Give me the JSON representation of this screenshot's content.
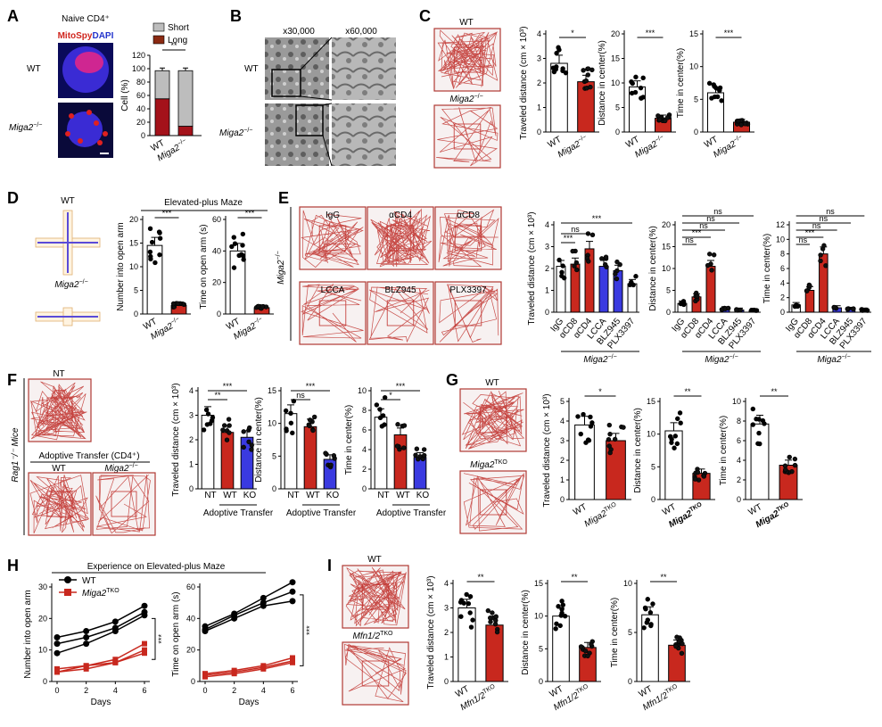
{
  "colors": {
    "red": "#c8281e",
    "darkred": "#a4121a",
    "brown": "#8b2a12",
    "blue": "#3a3ae0",
    "grey": "#bdbdbd",
    "trackred": "#c0302c"
  },
  "panels": [
    {
      "id": "A",
      "letter": "A",
      "header": "Naive CD4⁺",
      "micro_label": "MitoSpy",
      "micro_label2": "DAPI",
      "row_labels": [
        "WT",
        "Miga2"
      ],
      "ylabel": "Cell (%)",
      "ticks": [
        "0",
        "20",
        "40",
        "60",
        "80",
        "100",
        "120"
      ],
      "legend": [
        "Short",
        "Long"
      ],
      "sig": "**",
      "cats": [
        "WT",
        "Miga2"
      ]
    },
    {
      "id": "B",
      "letter": "B",
      "zoom": [
        "x30,000",
        "x60,000"
      ],
      "row_labels": [
        "WT",
        "Miga2"
      ]
    },
    {
      "id": "C",
      "letter": "C",
      "track_labels": [
        "WT",
        "Miga2"
      ],
      "plots": [
        {
          "ylabel": "Traveled distance (cm × 10³)",
          "ticks": [
            "0",
            "1",
            "2",
            "3",
            "4"
          ],
          "sig": "*",
          "cats": [
            "WT",
            "Miga2"
          ]
        },
        {
          "ylabel": "Distance in center(%)",
          "ticks": [
            "0",
            "5",
            "10",
            "15",
            "20"
          ],
          "sig": "***",
          "cats": [
            "WT",
            "Miga2"
          ]
        },
        {
          "ylabel": "Time in center(%)",
          "ticks": [
            "0",
            "5",
            "10",
            "15"
          ],
          "sig": "***",
          "cats": [
            "WT",
            "Miga2"
          ]
        }
      ]
    },
    {
      "id": "D",
      "letter": "D",
      "title": "Elevated-plus Maze",
      "maze_labels": [
        "WT",
        "Miga2"
      ],
      "plots": [
        {
          "ylabel": "Number into open arm",
          "ticks": [
            "0",
            "5",
            "10",
            "15",
            "20"
          ],
          "sig": "***",
          "cats": [
            "WT",
            "Miga2"
          ]
        },
        {
          "ylabel": "Time on open arm (s)",
          "ticks": [
            "0",
            "20",
            "40",
            "60"
          ],
          "sig": "***",
          "cats": [
            "WT",
            "Miga2"
          ]
        }
      ]
    },
    {
      "id": "E",
      "letter": "E",
      "side": "Miga2",
      "tracks": [
        "IgG",
        "αCD4",
        "αCD8",
        "LCCA",
        "BLZ945",
        "PLX3397"
      ],
      "cats": [
        "IgG",
        "αCD8",
        "αCD4",
        "LCCA",
        "BLZ945",
        "PLX3397"
      ],
      "under": "Miga2",
      "plots": [
        {
          "ylabel": "Traveled distance (cm × 10³)",
          "ticks": [
            "0",
            "1",
            "2",
            "3",
            "4"
          ],
          "sigs": [
            "ns",
            "***",
            "***"
          ]
        },
        {
          "ylabel": "Distance in center(%)",
          "ticks": [
            "0",
            "5",
            "10",
            "15",
            "20"
          ],
          "sigs": [
            "ns",
            "ns",
            "ns",
            "***",
            "ns"
          ]
        },
        {
          "ylabel": "Time in center(%)",
          "ticks": [
            "0",
            "2",
            "4",
            "6",
            "8",
            "10",
            "12"
          ],
          "sigs": [
            "ns",
            "ns",
            "ns",
            "***",
            "ns"
          ]
        }
      ]
    },
    {
      "id": "F",
      "letter": "F",
      "side": "Rag1⁻/⁻ Mice",
      "track_top": "NT",
      "transfer": "Adoptive Transfer (CD4⁺)",
      "track_labels": [
        "WT",
        "Miga2"
      ],
      "cats": [
        "NT",
        "WT",
        "KO"
      ],
      "group": "Adoptive Transfer",
      "plots": [
        {
          "ylabel": "Traveled distance (cm × 10³)",
          "ticks": [
            "0",
            "1",
            "2",
            "3",
            "4"
          ],
          "sigs": [
            "**",
            "***"
          ]
        },
        {
          "ylabel": "Distance in center(%)",
          "ticks": [
            "0",
            "5",
            "10",
            "15"
          ],
          "sigs": [
            "ns",
            "***"
          ]
        },
        {
          "ylabel": "Time in center(%)",
          "ticks": [
            "0",
            "2",
            "4",
            "6",
            "8",
            "10"
          ],
          "sigs": [
            "*",
            "***"
          ]
        }
      ]
    },
    {
      "id": "G",
      "letter": "G",
      "track_labels": [
        "WT",
        "Miga2TKO"
      ],
      "plots": [
        {
          "ylabel": "Traveled distance (cm × 10³)",
          "ticks": [
            "0",
            "1",
            "2",
            "3",
            "4",
            "5"
          ],
          "sig": "*",
          "cats": [
            "WT",
            "Miga2TKO"
          ]
        },
        {
          "ylabel": "Distance in center(%)",
          "ticks": [
            "0",
            "5",
            "10",
            "15"
          ],
          "sig": "**",
          "cats": [
            "WT",
            "Miga2TKO"
          ]
        },
        {
          "ylabel": "Time in center(%)",
          "ticks": [
            "0",
            "2",
            "4",
            "6",
            "8",
            "10"
          ],
          "sig": "**",
          "cats": [
            "WT",
            "Miga2TKO"
          ]
        }
      ]
    },
    {
      "id": "H",
      "letter": "H",
      "title": "Experience on Elevated-plus Maze",
      "legend": [
        "WT",
        "Miga2TKO"
      ],
      "plots": [
        {
          "ylabel": "Number into open arm",
          "xlabel": "Days",
          "xticks": [
            "0",
            "2",
            "4",
            "6"
          ],
          "ticks": [
            "0",
            "10",
            "20",
            "30"
          ],
          "sig": "***"
        },
        {
          "ylabel": "Time on open arm (s)",
          "xlabel": "Days",
          "xticks": [
            "0",
            "2",
            "4",
            "6"
          ],
          "ticks": [
            "0",
            "20",
            "40",
            "60"
          ],
          "sig": "***"
        }
      ]
    },
    {
      "id": "I",
      "letter": "I",
      "track_labels": [
        "WT",
        "Mfn1/2TKO"
      ],
      "plots": [
        {
          "ylabel": "Traveled distance (cm × 10³)",
          "ticks": [
            "0",
            "1",
            "2",
            "3",
            "4"
          ],
          "sig": "**",
          "cats": [
            "WT",
            "Mfn1/2TKO"
          ]
        },
        {
          "ylabel": "Distance in center(%)",
          "ticks": [
            "0",
            "5",
            "10",
            "15"
          ],
          "sig": "**",
          "cats": [
            "WT",
            "Mfn1/2TKO"
          ]
        },
        {
          "ylabel": "Time in center(%)",
          "ticks": [
            "0",
            "5",
            "10"
          ],
          "sig": "**",
          "cats": [
            "WT",
            "Mfn1/2TKO"
          ]
        }
      ]
    }
  ],
  "chart_data": [
    {
      "panel": "A",
      "type": "bar",
      "categories": [
        "WT",
        "Miga2"
      ],
      "ylim": [
        0,
        120
      ],
      "series": [
        {
          "name": "Long",
          "values": [
            55,
            14
          ]
        },
        {
          "name": "Short",
          "values": [
            42,
            83
          ]
        }
      ]
    },
    {
      "panel": "C",
      "type": "bar",
      "categories": [
        "WT",
        "Miga2"
      ],
      "ylim": [
        0,
        4
      ],
      "values": [
        2.8,
        2.05
      ]
    },
    {
      "panel": "C",
      "type": "bar",
      "categories": [
        "WT",
        "Miga2"
      ],
      "ylim": [
        0,
        20
      ],
      "values": [
        9.2,
        2.8
      ]
    },
    {
      "panel": "C",
      "type": "bar",
      "categories": [
        "WT",
        "Miga2"
      ],
      "ylim": [
        0,
        15
      ],
      "values": [
        6.0,
        1.5
      ]
    },
    {
      "panel": "D",
      "type": "bar",
      "categories": [
        "WT",
        "Miga2"
      ],
      "ylim": [
        0,
        20
      ],
      "values": [
        14.5,
        1.8
      ]
    },
    {
      "panel": "D",
      "type": "bar",
      "categories": [
        "WT",
        "Miga2"
      ],
      "ylim": [
        0,
        60
      ],
      "values": [
        40,
        4
      ]
    },
    {
      "panel": "E",
      "type": "bar",
      "categories": [
        "IgG",
        "αCD8",
        "αCD4",
        "LCCA",
        "BLZ945",
        "PLX3397"
      ],
      "ylim": [
        0,
        4
      ],
      "values": [
        2.1,
        2.2,
        2.9,
        2.1,
        1.9,
        1.3
      ]
    },
    {
      "panel": "E",
      "type": "bar",
      "categories": [
        "IgG",
        "αCD8",
        "αCD4",
        "LCCA",
        "BLZ945",
        "PLX3397"
      ],
      "ylim": [
        0,
        20
      ],
      "values": [
        2.0,
        3.5,
        10.5,
        0.8,
        0.5,
        0.4
      ]
    },
    {
      "panel": "E",
      "type": "bar",
      "categories": [
        "IgG",
        "αCD8",
        "αCD4",
        "LCCA",
        "BLZ945",
        "PLX3397"
      ],
      "ylim": [
        0,
        12
      ],
      "values": [
        1.0,
        3.0,
        8.0,
        0.6,
        0.4,
        0.3
      ]
    },
    {
      "panel": "F",
      "type": "bar",
      "categories": [
        "NT",
        "WT",
        "KO"
      ],
      "ylim": [
        0,
        4
      ],
      "values": [
        3.0,
        2.3,
        2.1
      ]
    },
    {
      "panel": "F",
      "type": "bar",
      "categories": [
        "NT",
        "WT",
        "KO"
      ],
      "ylim": [
        0,
        15
      ],
      "values": [
        11.5,
        9.5,
        4.5
      ]
    },
    {
      "panel": "F",
      "type": "bar",
      "categories": [
        "NT",
        "WT",
        "KO"
      ],
      "ylim": [
        0,
        10
      ],
      "values": [
        7.3,
        5.5,
        3.2
      ]
    },
    {
      "panel": "G",
      "type": "bar",
      "categories": [
        "WT",
        "Miga2TKO"
      ],
      "ylim": [
        0,
        5
      ],
      "values": [
        3.8,
        3.0
      ]
    },
    {
      "panel": "G",
      "type": "bar",
      "categories": [
        "WT",
        "Miga2TKO"
      ],
      "ylim": [
        0,
        15
      ],
      "values": [
        10.5,
        4.0
      ]
    },
    {
      "panel": "G",
      "type": "bar",
      "categories": [
        "WT",
        "Miga2TKO"
      ],
      "ylim": [
        0,
        10
      ],
      "values": [
        7.7,
        3.5
      ]
    },
    {
      "panel": "H",
      "type": "line",
      "x": [
        0,
        2,
        4,
        6
      ],
      "ylim": [
        0,
        30
      ],
      "series": [
        {
          "name": "WT",
          "values": [
            [
              14,
              16,
              19,
              24
            ],
            [
              12,
              14,
              17,
              22
            ],
            [
              9,
              12,
              16,
              21
            ]
          ]
        },
        {
          "name": "Miga2TKO",
          "values": [
            [
              4,
              5,
              7,
              12
            ],
            [
              3,
              5,
              6,
              10
            ],
            [
              3,
              4,
              6,
              9
            ]
          ]
        }
      ]
    },
    {
      "panel": "H",
      "type": "line",
      "x": [
        0,
        2,
        4,
        6
      ],
      "ylim": [
        0,
        60
      ],
      "series": [
        {
          "name": "WT",
          "values": [
            [
              35,
              43,
              53,
              63
            ],
            [
              33,
              42,
              50,
              57
            ],
            [
              32,
              40,
              48,
              51
            ]
          ]
        },
        {
          "name": "Miga2TKO",
          "values": [
            [
              5,
              7,
              10,
              15
            ],
            [
              4,
              6,
              9,
              13
            ],
            [
              3,
              5,
              8,
              12
            ]
          ]
        }
      ]
    },
    {
      "panel": "I",
      "type": "bar",
      "categories": [
        "WT",
        "Mfn1/2TKO"
      ],
      "ylim": [
        0,
        4
      ],
      "values": [
        3.0,
        2.3
      ]
    },
    {
      "panel": "I",
      "type": "bar",
      "categories": [
        "WT",
        "Mfn1/2TKO"
      ],
      "ylim": [
        0,
        15
      ],
      "values": [
        10.0,
        5.2
      ]
    },
    {
      "panel": "I",
      "type": "bar",
      "categories": [
        "WT",
        "Mfn1/2TKO"
      ],
      "ylim": [
        0,
        10
      ],
      "values": [
        6.8,
        3.7
      ]
    }
  ]
}
